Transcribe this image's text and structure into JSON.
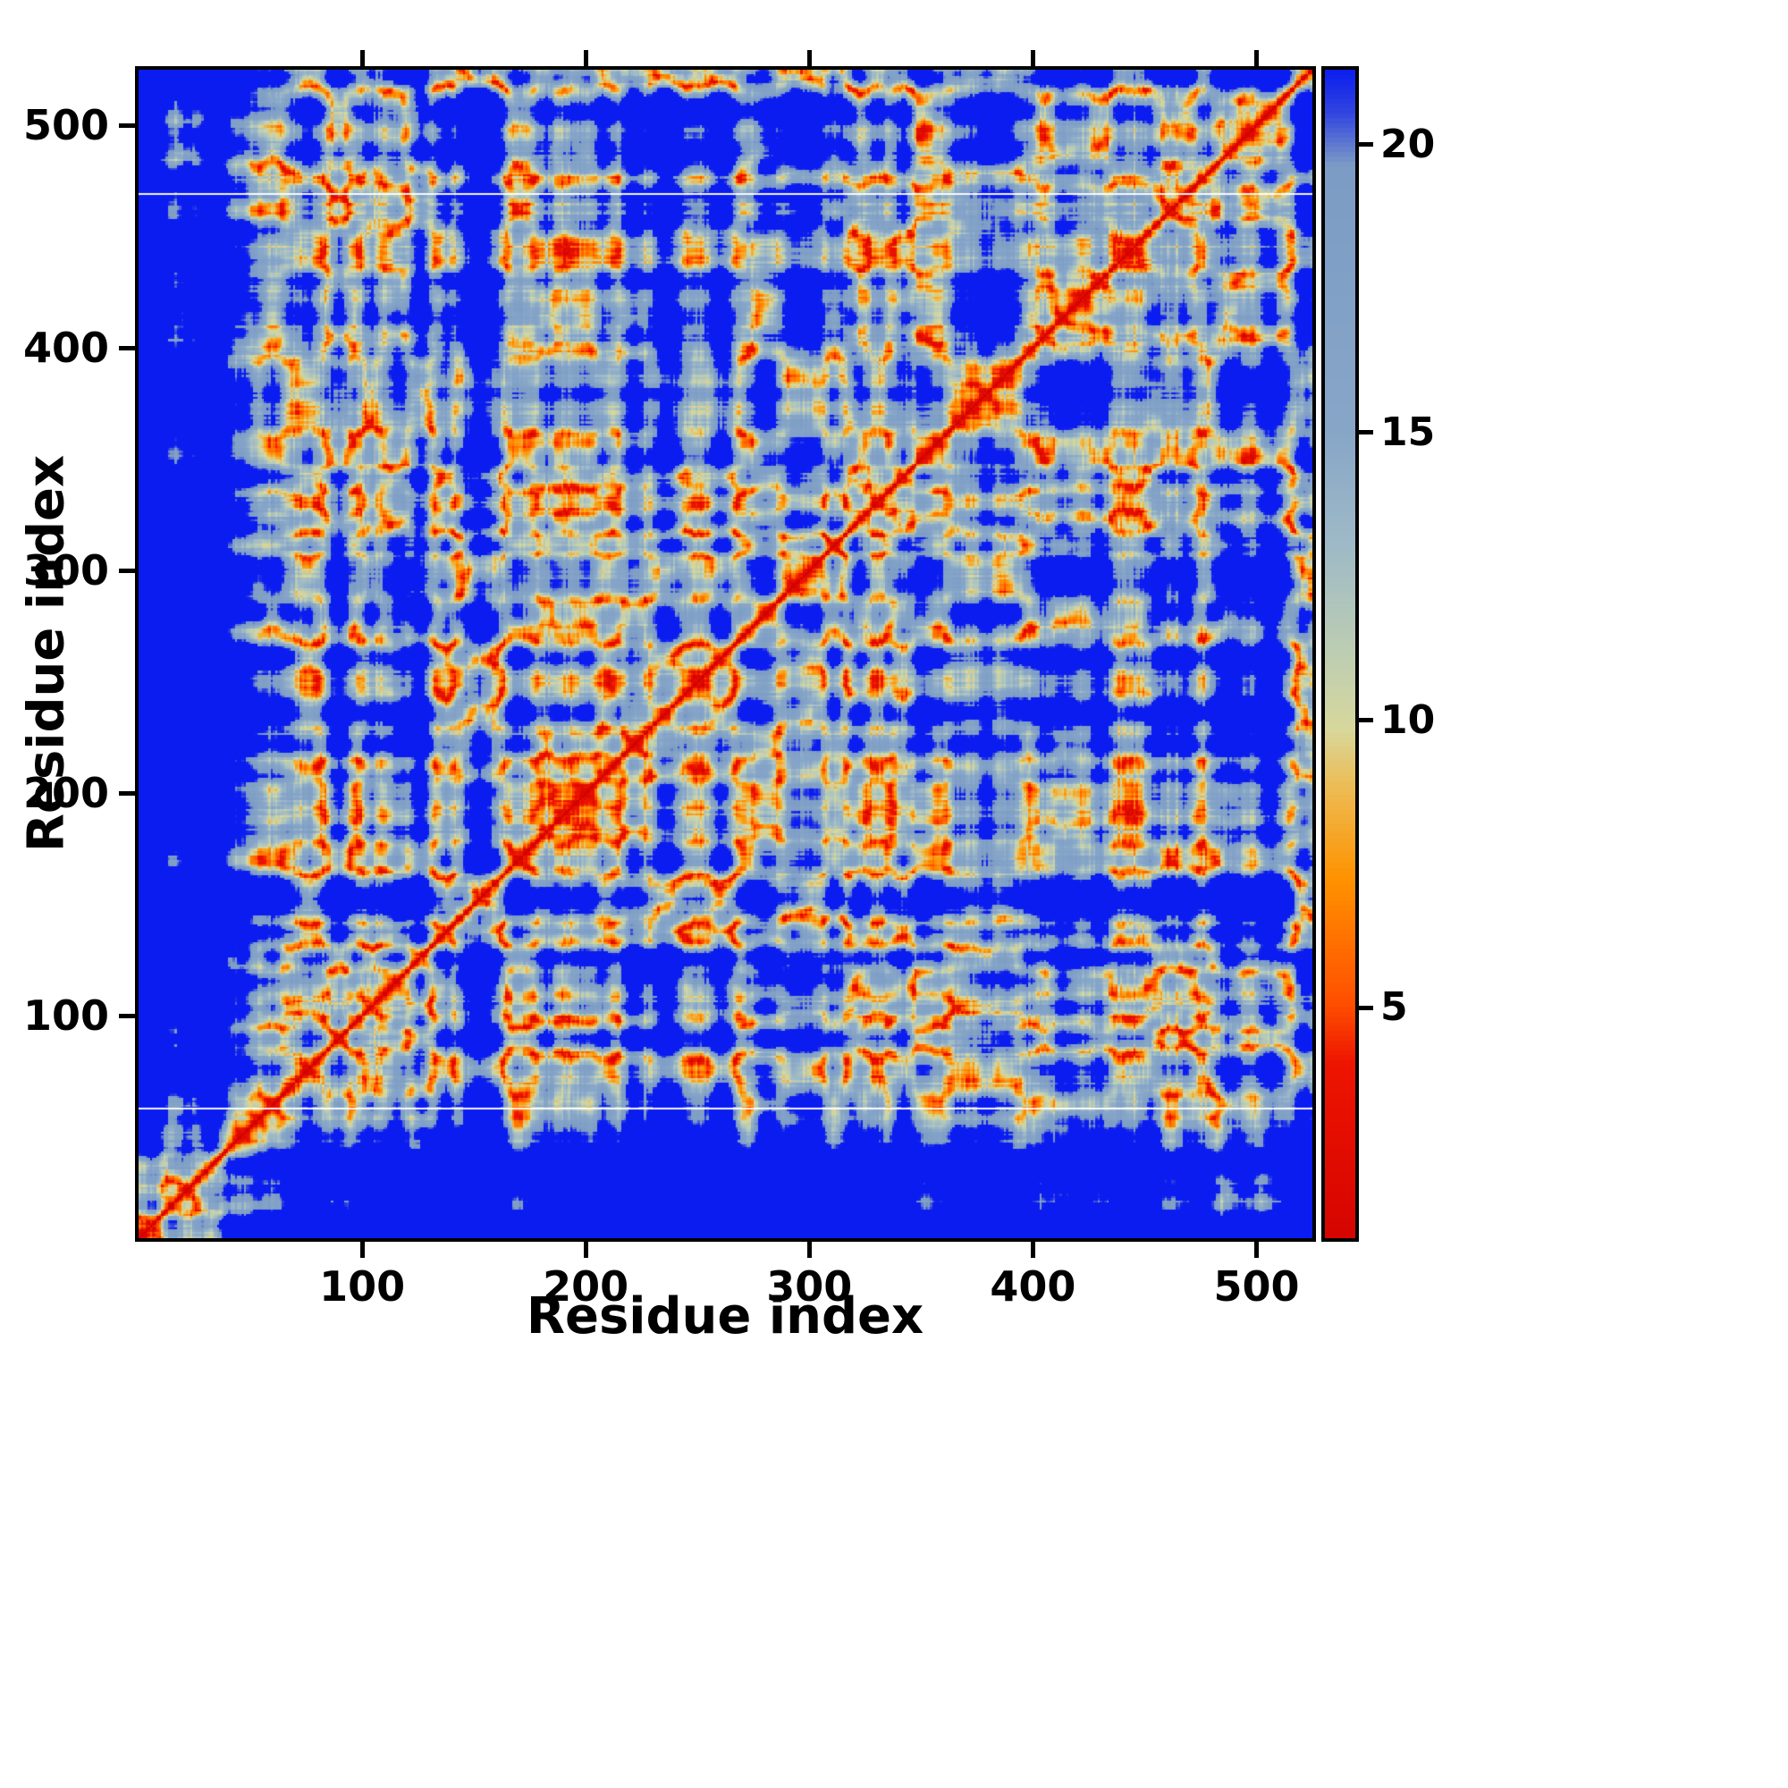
{
  "chart_data": {
    "type": "heatmap",
    "title": "",
    "xlabel": "Residue index",
    "ylabel": "Residue index",
    "x_ticks": [
      100,
      200,
      300,
      400,
      500
    ],
    "y_ticks": [
      100,
      200,
      300,
      400,
      500
    ],
    "x_range": [
      0,
      525
    ],
    "y_range": [
      0,
      525
    ],
    "value_cap": 21.3,
    "colorbar": {
      "position": "right",
      "orientation": "vertical",
      "ticks": [
        5,
        10,
        15,
        20
      ],
      "vmin": 1.0,
      "vmax": 21.3
    },
    "colormap_stops": [
      {
        "v": 0.0,
        "c": "#cf0000"
      },
      {
        "v": 4.0,
        "c": "#ee1500"
      },
      {
        "v": 5.0,
        "c": "#ff4e00"
      },
      {
        "v": 7.2,
        "c": "#ff9300"
      },
      {
        "v": 8.8,
        "c": "#edbc55"
      },
      {
        "v": 9.8,
        "c": "#d8d89c"
      },
      {
        "v": 11.2,
        "c": "#bccdb4"
      },
      {
        "v": 13.0,
        "c": "#9fbac7"
      },
      {
        "v": 15.0,
        "c": "#87a6c8"
      },
      {
        "v": 19.6,
        "c": "#7d9cc5"
      },
      {
        "v": 20.5,
        "c": "#3346e0"
      },
      {
        "v": 21.3,
        "c": "#0a1cf0"
      }
    ],
    "artifact_white_rows": [
      58,
      469
    ],
    "description": "Symmetric residue-residue distance matrix of a ~525-residue protein. Sharp red diagonal (zero distance) flanked by orange and pale-green bands; slate-blue mottled regions are mid-range contacts; deep blue marks pairs beyond the color scale maximum (~21). Extended N-terminal tail produces solid deep-blue bands along the low-index edges; two thin white artifact rows cross the map.",
    "render_params": {
      "seed": 20240613,
      "n_residues": 525,
      "fourier_modes": 40,
      "spectral_exponent": 0.6,
      "step_length": 3.0,
      "compaction": 0.72,
      "jitter": 0.9,
      "tail_length": 45,
      "tail_drift": 1.0
    }
  }
}
